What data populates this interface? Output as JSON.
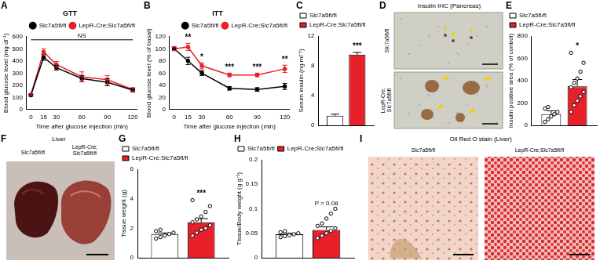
{
  "chart_data": [
    {
      "panel": "A",
      "type": "line",
      "title": "GTT",
      "x": [
        0,
        15,
        30,
        60,
        90,
        120
      ],
      "x_label": "Time after glucose injection (min)",
      "y_label": "Blood glucose level (mg dl⁻¹)",
      "xlim": [
        -5,
        125
      ],
      "xticks": [
        0,
        15,
        30,
        60,
        90,
        120
      ],
      "ylim": [
        0,
        600
      ],
      "yticks": [
        0,
        100,
        200,
        300,
        400,
        500,
        600
      ],
      "grid": false,
      "legend": "top right",
      "series": [
        {
          "name": "Slc7a5fl/fl",
          "color": "#000000",
          "marker": "circle",
          "values": [
            118,
            430,
            345,
            255,
            225,
            160
          ],
          "errors": [
            8,
            25,
            20,
            25,
            30,
            15
          ]
        },
        {
          "name": "LepR-Cre;Slc7a5fl/fl",
          "color": "#e8202a",
          "marker": "circle",
          "values": [
            122,
            475,
            370,
            270,
            245,
            165
          ],
          "errors": [
            8,
            25,
            25,
            40,
            35,
            15
          ]
        }
      ],
      "annotations": [
        {
          "text": "NS"
        }
      ]
    },
    {
      "panel": "B",
      "type": "line",
      "title": "ITT",
      "x": [
        0,
        15,
        30,
        60,
        90,
        120
      ],
      "x_label": "Time after glucose injection (min)",
      "y_label": "Blood glucose level (% of basal)",
      "xlim": [
        -5,
        125
      ],
      "xticks": [
        0,
        15,
        30,
        60,
        90,
        120
      ],
      "ylim": [
        0,
        120
      ],
      "yticks": [
        0,
        20,
        40,
        60,
        80,
        100,
        120
      ],
      "grid": false,
      "legend": "top right",
      "series": [
        {
          "name": "Slc7a5fl/fl",
          "color": "#000000",
          "marker": "circle",
          "values": [
            100,
            80,
            60,
            35,
            33,
            38
          ],
          "errors": [
            3,
            6,
            4,
            3,
            3,
            5
          ]
        },
        {
          "name": "LepR-Cre;Slc7a5fl/fl",
          "color": "#e8202a",
          "marker": "circle",
          "values": [
            100,
            103,
            72,
            57,
            57,
            67
          ],
          "errors": [
            3,
            6,
            5,
            3,
            3,
            6
          ]
        }
      ],
      "annotations": [
        {
          "text": "**",
          "x": 15
        },
        {
          "text": "*",
          "x": 30
        },
        {
          "text": "***",
          "x": 60
        },
        {
          "text": "***",
          "x": 90
        },
        {
          "text": "**",
          "x": 120
        }
      ]
    },
    {
      "panel": "C",
      "type": "bar",
      "categories": [
        null
      ],
      "y_label": "Serum insulin (ng ml⁻¹)",
      "ylim": [
        0,
        12
      ],
      "yticks": [
        0,
        4,
        8,
        12
      ],
      "grid": false,
      "legend": "top left",
      "tick_labels": "y",
      "series": [
        {
          "name": "Slc7a5fl/fl",
          "color": "#ffffff",
          "values": [
            1.3
          ],
          "errors": [
            0.2
          ]
        },
        {
          "name": "LepR-Cre;Slc7a5fl/fl",
          "color": "#e8202a",
          "values": [
            9.5
          ],
          "errors": [
            0.3
          ]
        }
      ],
      "annotations": [
        {
          "text": "***",
          "series": 1
        }
      ]
    },
    {
      "panel": "E",
      "type": "bar",
      "categories": [
        null
      ],
      "y_label": "Insulin positive area (% of control)",
      "ylim": [
        0,
        800
      ],
      "yticks": [
        0,
        200,
        400,
        600,
        800
      ],
      "grid": false,
      "legend": "top left",
      "tick_labels": "y",
      "series": [
        {
          "name": "Slc7a5fl/fl",
          "color": "#ffffff",
          "values": [
            100
          ],
          "errors": [
            30
          ],
          "points": [
            30,
            55,
            80,
            100,
            120,
            150,
            165
          ]
        },
        {
          "name": "LepR-Cre;Slc7a5fl/fl",
          "color": "#e8202a",
          "values": [
            350
          ],
          "errors": [
            60
          ],
          "points": [
            120,
            180,
            220,
            260,
            300,
            340,
            380,
            420,
            480,
            560,
            650
          ]
        }
      ],
      "annotations": [
        {
          "text": "*",
          "series": 1
        }
      ]
    },
    {
      "panel": "G",
      "type": "bar",
      "categories": [
        null
      ],
      "y_label": "Tissue weight (g)",
      "ylim": [
        0,
        6
      ],
      "yticks": [
        0,
        2,
        4,
        6
      ],
      "grid": false,
      "legend": "top left",
      "tick_labels": "y",
      "series": [
        {
          "name": "Slc7a5fl/fl",
          "color": "#ffffff",
          "values": [
            1.6
          ],
          "errors": [
            0.08
          ],
          "points": [
            1.3,
            1.4,
            1.5,
            1.6,
            1.7,
            1.8,
            1.9
          ]
        },
        {
          "name": "LepR-Cre;Slc7a5fl/fl",
          "color": "#e8202a",
          "values": [
            2.4
          ],
          "errors": [
            0.25
          ],
          "points": [
            1.5,
            1.7,
            1.9,
            2.0,
            2.2,
            2.4,
            2.6,
            2.8,
            3.1,
            3.5,
            3.9
          ]
        }
      ],
      "annotations": [
        {
          "text": "***",
          "series": 1
        }
      ]
    },
    {
      "panel": "H",
      "type": "bar",
      "categories": [
        null
      ],
      "y_label": "Tissue/Body weight (g g⁻¹)",
      "ylim": [
        0,
        0.2
      ],
      "yticks": [
        0,
        0.05,
        0.1,
        0.15,
        0.2
      ],
      "grid": false,
      "legend": "top left",
      "tick_labels": "y",
      "series": [
        {
          "name": "Slc7a5fl/fl",
          "color": "#ffffff",
          "values": [
            0.048
          ],
          "errors": [
            0.002
          ],
          "points": [
            0.042,
            0.044,
            0.046,
            0.048,
            0.05,
            0.052,
            0.054
          ]
        },
        {
          "name": "LepR-Cre;Slc7a5fl/fl",
          "color": "#e8202a",
          "values": [
            0.057
          ],
          "errors": [
            0.006
          ],
          "points": [
            0.04,
            0.045,
            0.05,
            0.055,
            0.06,
            0.065,
            0.07,
            0.08,
            0.09,
            0.1
          ]
        }
      ],
      "annotations": [
        {
          "text": "P = 0.08",
          "series": 1
        }
      ]
    }
  ],
  "images": [
    {
      "panel": "D",
      "title": "Insulin IHC (Pancreas)",
      "labels": [
        "Slc7a5fl/fl",
        "LepR-Cre;Slc7a5fl/fl"
      ]
    },
    {
      "panel": "F",
      "title": "Liver",
      "labels": [
        "Slc7a5fl/fl",
        "LepR-Cre;Slc7a5fl/fl"
      ]
    },
    {
      "panel": "I",
      "title": "Oil Red O stain (Liver)",
      "labels": [
        "Slc7a5fl/fl",
        "LepR-Cre;Slc7a5fl/fl"
      ]
    }
  ]
}
